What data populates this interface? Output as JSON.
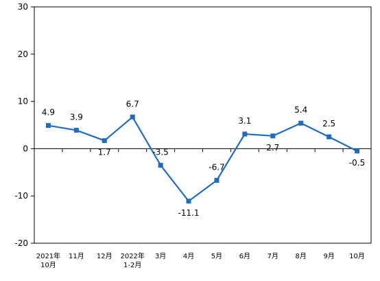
{
  "chart_data": {
    "type": "line",
    "title": "",
    "xlabel": "",
    "ylabel": "",
    "ylim": [
      -20,
      30
    ],
    "yticks": [
      30,
      20,
      10,
      0,
      -10,
      -20
    ],
    "grid": false,
    "legend": "none",
    "categories": [
      [
        "2021年",
        "10月"
      ],
      [
        "11月"
      ],
      [
        "12月"
      ],
      [
        "2022年",
        "1-2月"
      ],
      [
        "3月"
      ],
      [
        "4月"
      ],
      [
        "5月"
      ],
      [
        "6月"
      ],
      [
        "7月"
      ],
      [
        "8月"
      ],
      [
        "9月"
      ],
      [
        "10月"
      ]
    ],
    "series": [
      {
        "values": [
          4.9,
          3.9,
          1.7,
          6.7,
          -3.5,
          -11.1,
          -6.7,
          3.1,
          2.7,
          5.4,
          2.5,
          -0.5
        ],
        "labels": [
          "4.9",
          "3.9",
          "1.7",
          "6.7",
          "-3.5",
          "-11.1",
          "-6.7",
          "3.1",
          "2.7",
          "5.4",
          "2.5",
          "-0.5"
        ],
        "color": "#1f6bbf"
      }
    ]
  }
}
